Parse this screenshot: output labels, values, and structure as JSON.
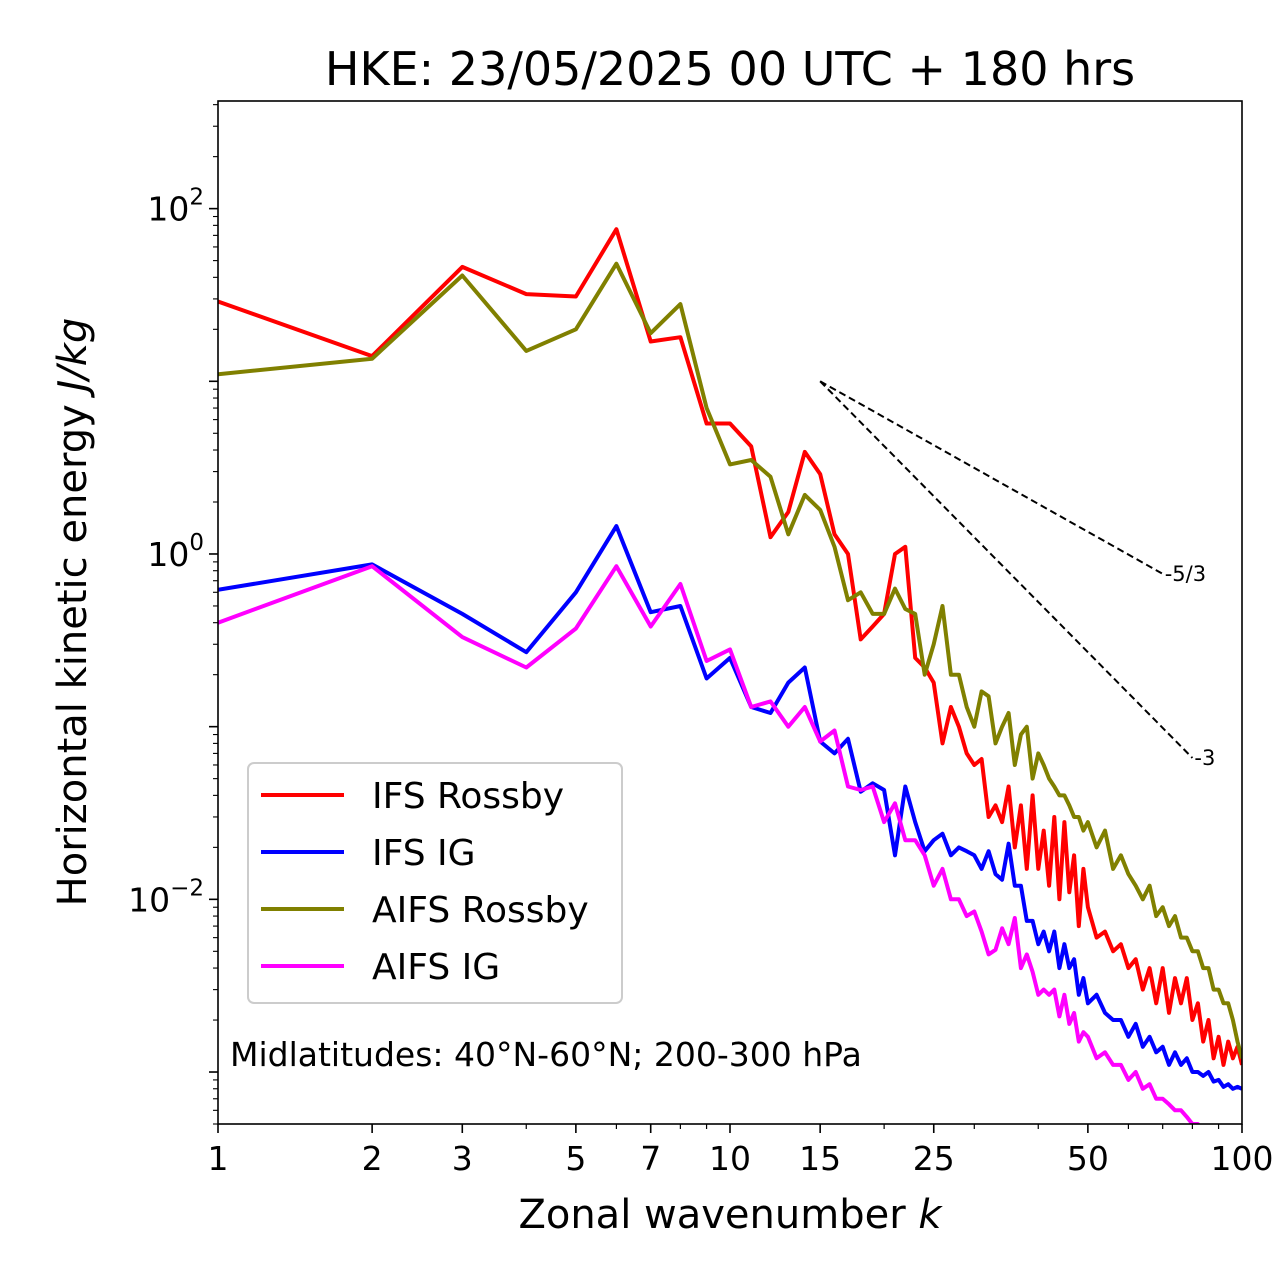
{
  "chart_data": {
    "type": "line",
    "title": "HKE: 23/05/2025 00 UTC + 180 hrs",
    "xlabel": "Zonal wavenumber ",
    "xlabel_var": "k",
    "ylabel": "Horizontal kinetic energy ",
    "ylabel_units": "J/kg",
    "xscale": "log",
    "yscale": "log",
    "xlim": [
      1,
      100
    ],
    "ylim": [
      0.0005,
      420
    ],
    "xticks": [
      1,
      2,
      3,
      5,
      7,
      10,
      15,
      25,
      50,
      100
    ],
    "xtick_labels": [
      "1",
      "2",
      "3",
      "5",
      "7",
      "10",
      "15",
      "25",
      "50",
      "100"
    ],
    "yticks": [
      {
        "value": 100,
        "base": "10",
        "exp": "2"
      },
      {
        "value": 1,
        "base": "10",
        "exp": "0"
      },
      {
        "value": 0.01,
        "base": "10",
        "exp": "−2"
      }
    ],
    "annotation": "Midlatitudes: 40°N-60°N; 200-300 hPa",
    "legend_position": "lower-left",
    "reference_slopes": [
      {
        "label": "-5/3",
        "slope": -1.6667,
        "x_start": 15,
        "y_start": 10,
        "x_end": 70
      },
      {
        "label": "-3",
        "slope": -3,
        "x_start": 15,
        "y_start": 10,
        "x_end": 80
      }
    ],
    "series": [
      {
        "name": "IFS Rossby",
        "color": "#ff0000",
        "x": [
          1,
          2,
          3,
          4,
          5,
          6,
          7,
          8,
          9,
          10,
          11,
          12,
          13,
          14,
          15,
          16,
          17,
          18,
          19,
          20,
          21,
          22,
          23,
          24,
          25,
          26,
          27,
          28,
          29,
          30,
          31,
          32,
          33,
          34,
          35,
          36,
          37,
          38,
          39,
          40,
          41,
          42,
          43,
          44,
          45,
          46,
          47,
          48,
          49,
          50,
          52,
          54,
          56,
          58,
          60,
          62,
          64,
          66,
          68,
          70,
          72,
          74,
          76,
          78,
          80,
          82,
          84,
          86,
          88,
          90,
          92,
          94,
          96,
          98,
          100
        ],
        "y": [
          29,
          14,
          46,
          32,
          31,
          76,
          17,
          18,
          5.7,
          5.7,
          4.2,
          1.25,
          1.75,
          3.9,
          2.9,
          1.3,
          1.0,
          0.32,
          0.38,
          0.45,
          1.0,
          1.1,
          0.25,
          0.22,
          0.18,
          0.08,
          0.13,
          0.1,
          0.07,
          0.06,
          0.065,
          0.03,
          0.035,
          0.028,
          0.045,
          0.02,
          0.035,
          0.015,
          0.04,
          0.015,
          0.025,
          0.012,
          0.03,
          0.01,
          0.028,
          0.011,
          0.018,
          0.007,
          0.015,
          0.009,
          0.006,
          0.0065,
          0.005,
          0.0055,
          0.004,
          0.0045,
          0.003,
          0.004,
          0.0025,
          0.004,
          0.0022,
          0.0035,
          0.0025,
          0.0035,
          0.002,
          0.0025,
          0.0015,
          0.002,
          0.0012,
          0.0016,
          0.0011,
          0.0015,
          0.0012,
          0.0014,
          0.0011
        ]
      },
      {
        "name": "IFS IG",
        "color": "#0000ff",
        "x": [
          1,
          2,
          3,
          4,
          5,
          6,
          7,
          8,
          9,
          10,
          11,
          12,
          13,
          14,
          15,
          16,
          17,
          18,
          19,
          20,
          21,
          22,
          23,
          24,
          25,
          26,
          27,
          28,
          29,
          30,
          31,
          32,
          33,
          34,
          35,
          36,
          37,
          38,
          39,
          40,
          41,
          42,
          43,
          44,
          45,
          46,
          47,
          48,
          49,
          50,
          52,
          54,
          56,
          58,
          60,
          62,
          64,
          66,
          68,
          70,
          72,
          74,
          76,
          78,
          80,
          82,
          84,
          86,
          88,
          90,
          92,
          94,
          96,
          98,
          100
        ],
        "y": [
          0.62,
          0.87,
          0.45,
          0.27,
          0.6,
          1.45,
          0.46,
          0.5,
          0.19,
          0.25,
          0.13,
          0.12,
          0.18,
          0.22,
          0.082,
          0.07,
          0.085,
          0.042,
          0.047,
          0.043,
          0.018,
          0.045,
          0.028,
          0.019,
          0.022,
          0.024,
          0.018,
          0.02,
          0.019,
          0.018,
          0.015,
          0.019,
          0.014,
          0.013,
          0.021,
          0.012,
          0.012,
          0.0075,
          0.0075,
          0.0055,
          0.0065,
          0.005,
          0.0065,
          0.004,
          0.0055,
          0.004,
          0.0045,
          0.0028,
          0.0035,
          0.0025,
          0.0028,
          0.0022,
          0.002,
          0.002,
          0.0016,
          0.0019,
          0.0014,
          0.0016,
          0.0013,
          0.0014,
          0.0011,
          0.0013,
          0.0011,
          0.0012,
          0.001,
          0.001,
          0.00095,
          0.001,
          0.00088,
          0.0009,
          0.00082,
          0.00085,
          0.0008,
          0.00082,
          0.0008
        ]
      },
      {
        "name": "AIFS Rossby",
        "color": "#808000",
        "x": [
          1,
          2,
          3,
          4,
          5,
          6,
          7,
          8,
          9,
          10,
          11,
          12,
          13,
          14,
          15,
          16,
          17,
          18,
          19,
          20,
          21,
          22,
          23,
          24,
          25,
          26,
          27,
          28,
          29,
          30,
          31,
          32,
          33,
          34,
          35,
          36,
          37,
          38,
          39,
          40,
          41,
          42,
          43,
          44,
          45,
          46,
          47,
          48,
          49,
          50,
          52,
          54,
          56,
          58,
          60,
          62,
          64,
          66,
          68,
          70,
          72,
          74,
          76,
          78,
          80,
          82,
          84,
          86,
          88,
          90,
          92,
          94,
          96,
          98,
          100
        ],
        "y": [
          11,
          13.5,
          41,
          15,
          20,
          48,
          19,
          28,
          7,
          3.3,
          3.5,
          2.8,
          1.3,
          2.2,
          1.8,
          1.1,
          0.54,
          0.6,
          0.45,
          0.45,
          0.63,
          0.48,
          0.45,
          0.2,
          0.3,
          0.5,
          0.2,
          0.2,
          0.13,
          0.1,
          0.16,
          0.15,
          0.08,
          0.1,
          0.12,
          0.06,
          0.09,
          0.1,
          0.05,
          0.07,
          0.06,
          0.05,
          0.045,
          0.04,
          0.04,
          0.035,
          0.03,
          0.03,
          0.025,
          0.028,
          0.02,
          0.025,
          0.015,
          0.018,
          0.014,
          0.012,
          0.01,
          0.012,
          0.008,
          0.009,
          0.007,
          0.008,
          0.006,
          0.006,
          0.005,
          0.005,
          0.004,
          0.004,
          0.003,
          0.003,
          0.0025,
          0.0025,
          0.002,
          0.0015,
          0.0012
        ]
      },
      {
        "name": "AIFS IG",
        "color": "#ff00ff",
        "x": [
          1,
          2,
          3,
          4,
          5,
          6,
          7,
          8,
          9,
          10,
          11,
          12,
          13,
          14,
          15,
          16,
          17,
          18,
          19,
          20,
          21,
          22,
          23,
          24,
          25,
          26,
          27,
          28,
          29,
          30,
          31,
          32,
          33,
          34,
          35,
          36,
          37,
          38,
          39,
          40,
          41,
          42,
          43,
          44,
          45,
          46,
          47,
          48,
          49,
          50,
          52,
          54,
          56,
          58,
          60,
          62,
          64,
          66,
          68,
          70,
          72,
          74,
          76,
          78,
          80,
          82,
          84,
          86,
          88,
          90,
          92,
          94,
          96,
          98,
          100
        ],
        "y": [
          0.4,
          0.85,
          0.33,
          0.22,
          0.37,
          0.85,
          0.38,
          0.67,
          0.24,
          0.28,
          0.13,
          0.14,
          0.1,
          0.13,
          0.082,
          0.095,
          0.045,
          0.043,
          0.045,
          0.028,
          0.036,
          0.022,
          0.022,
          0.018,
          0.012,
          0.015,
          0.01,
          0.01,
          0.008,
          0.0085,
          0.0065,
          0.0048,
          0.0051,
          0.0068,
          0.0055,
          0.0078,
          0.004,
          0.0048,
          0.0038,
          0.0028,
          0.003,
          0.0028,
          0.003,
          0.0021,
          0.0028,
          0.0019,
          0.0022,
          0.0015,
          0.0017,
          0.0016,
          0.0012,
          0.0013,
          0.0011,
          0.0011,
          0.0009,
          0.001,
          0.0008,
          0.00085,
          0.0007,
          0.0007,
          0.00065,
          0.0006,
          0.0006,
          0.00055,
          0.0005,
          0.0005,
          0.00045,
          0.00045,
          0.0004,
          0.0004,
          0.00038,
          0.00036,
          0.00035,
          0.00034,
          0.00033
        ]
      }
    ]
  }
}
